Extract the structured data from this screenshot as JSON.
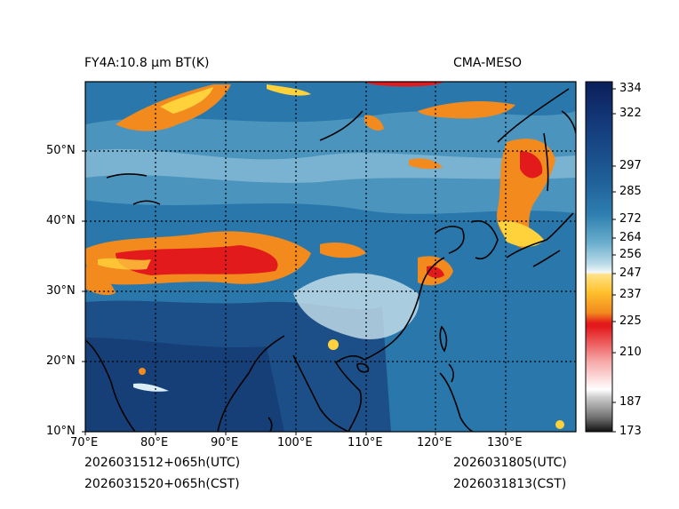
{
  "header": {
    "left_title": "FY4A:10.8 µm BT(K)",
    "right_title": "CMA-MESO"
  },
  "footer": {
    "init_utc": "2026031512+065h(UTC)",
    "init_cst": "2026031520+065h(CST)",
    "valid_utc": "2026031805(UTC)",
    "valid_cst": "2026031813(CST)"
  },
  "map": {
    "lon_ticks": [
      "70°E",
      "80°E",
      "90°E",
      "100°E",
      "110°E",
      "120°E",
      "130°E"
    ],
    "lat_ticks": [
      "10°N",
      "20°N",
      "30°N",
      "40°N",
      "50°N"
    ],
    "extent": {
      "lon_min": 70,
      "lon_max": 140,
      "lat_min": 10,
      "lat_max": 60
    }
  },
  "colorbar": {
    "ticks": [
      "334",
      "322",
      "297",
      "285",
      "272",
      "264",
      "256",
      "247",
      "237",
      "225",
      "210",
      "187",
      "173"
    ],
    "tick_values": [
      334,
      322,
      297,
      285,
      272,
      264,
      256,
      247,
      237,
      225,
      210,
      187,
      173
    ],
    "colors": {
      "dark_navy": "#0b1f5a",
      "deep_blue": "#1b4f8a",
      "mid_blue": "#2e7fb0",
      "light_blue": "#8fc4dc",
      "pale": "#e8f2f6",
      "yellow": "#ffd23c",
      "orange": "#f28a1e",
      "red": "#e31a1c",
      "pink": "#f7b4b4",
      "gray": "#9a9a9a",
      "black": "#111111"
    }
  }
}
